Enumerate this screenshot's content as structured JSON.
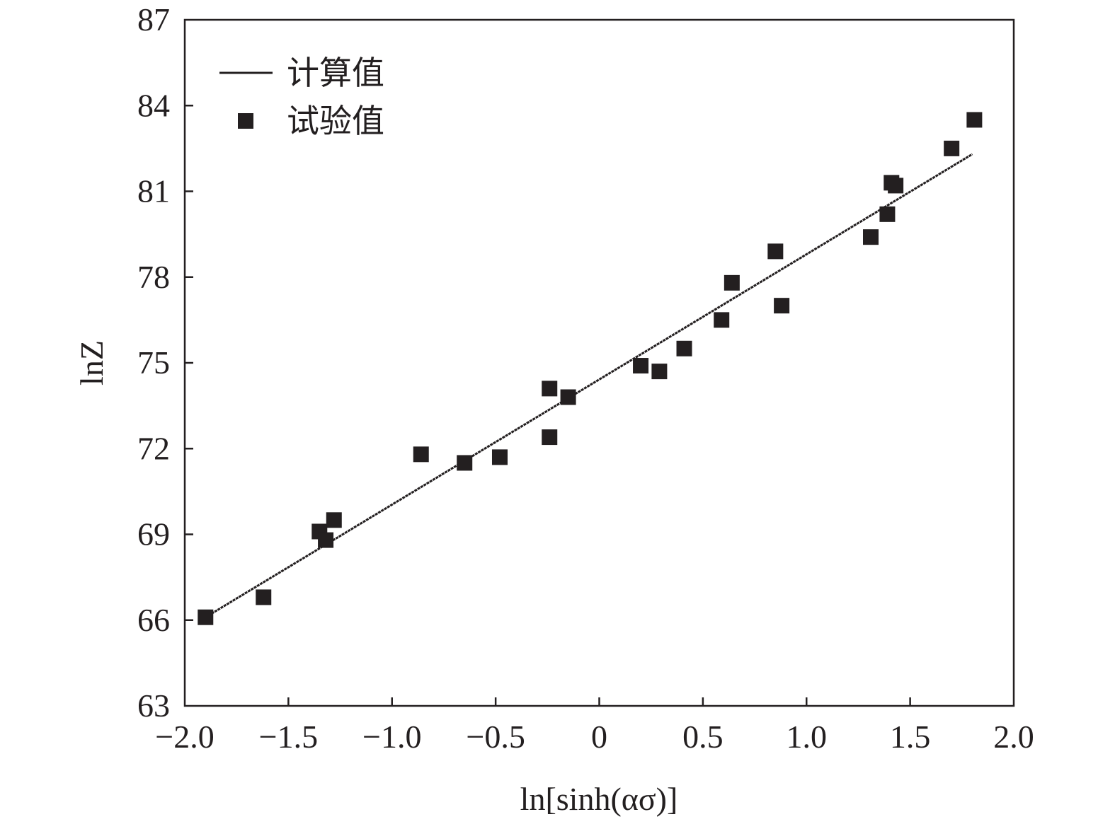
{
  "chart_data": {
    "type": "scatter",
    "title": "",
    "xlabel": "ln[sinh(ασ)]",
    "ylabel": "lnZ",
    "xlim": [
      -2.0,
      2.0
    ],
    "ylim": [
      63,
      87
    ],
    "xticks": [
      -2.0,
      -1.5,
      -1.0,
      -0.5,
      0,
      0.5,
      1.0,
      1.5,
      2.0
    ],
    "xtick_labels": [
      "−2.0",
      "−1.5",
      "−1.0",
      "−0.5",
      "0",
      "0.5",
      "1.0",
      "1.5",
      "2.0"
    ],
    "yticks": [
      63,
      66,
      69,
      72,
      75,
      78,
      81,
      84,
      87
    ],
    "ytick_labels": [
      "63",
      "66",
      "69",
      "72",
      "75",
      "78",
      "81",
      "84",
      "87"
    ],
    "grid": false,
    "legend_position": "top-left",
    "series": [
      {
        "name": "计算值",
        "kind": "line",
        "x": [
          -1.9,
          1.8
        ],
        "y": [
          66.1,
          82.3
        ]
      },
      {
        "name": "试验值",
        "kind": "scatter",
        "marker": "square",
        "x": [
          -1.9,
          -1.62,
          -1.35,
          -1.32,
          -1.28,
          -0.86,
          -0.65,
          -0.48,
          -0.24,
          -0.24,
          -0.15,
          0.2,
          0.29,
          0.41,
          0.59,
          0.64,
          0.85,
          0.88,
          1.31,
          1.39,
          1.41,
          1.43,
          1.7,
          1.81
        ],
        "y": [
          66.1,
          66.8,
          69.1,
          68.8,
          69.5,
          71.8,
          71.5,
          71.7,
          74.1,
          72.4,
          73.8,
          74.9,
          74.7,
          75.5,
          76.5,
          77.8,
          78.9,
          77.0,
          79.4,
          80.2,
          81.3,
          81.2,
          82.5,
          83.5
        ]
      }
    ]
  },
  "colors": {
    "ink": "#231f20",
    "background": "#ffffff"
  }
}
